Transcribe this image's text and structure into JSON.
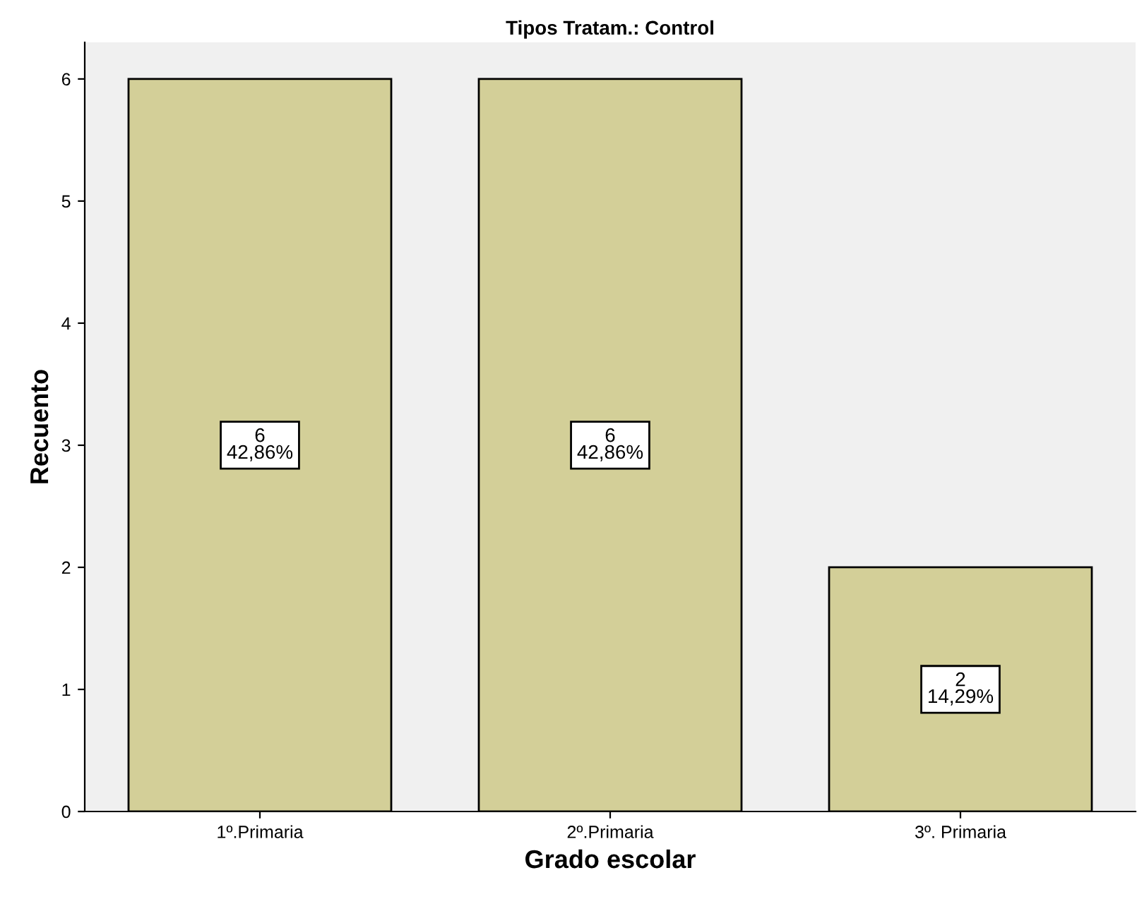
{
  "chart_data": {
    "type": "bar",
    "title": "Tipos Tratam.: Control",
    "xlabel": "Grado escolar",
    "ylabel": "Recuento",
    "categories": [
      "1º.Primaria",
      "2º.Primaria",
      "3º. Primaria"
    ],
    "values": [
      6,
      6,
      2
    ],
    "value_labels": [
      "6\n42,86%",
      "6\n42,86%",
      "2\n14,29%"
    ],
    "color": "#d3cf98",
    "ylim": [
      0,
      6.3
    ],
    "yticks": [
      0,
      1,
      2,
      3,
      4,
      5,
      6
    ],
    "grid": false
  }
}
